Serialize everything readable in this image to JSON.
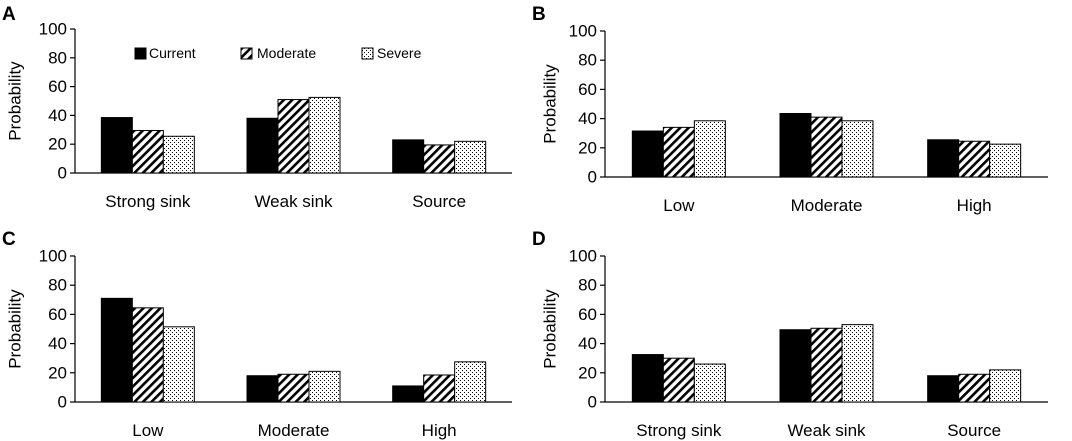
{
  "chart_data": [
    {
      "panel": "A",
      "type": "bar",
      "ylabel": "Probability",
      "ylim": [
        0,
        100
      ],
      "yticks": [
        0,
        20,
        40,
        60,
        80,
        100
      ],
      "categories": [
        "Strong sink",
        "Weak sink",
        "Source"
      ],
      "series": [
        {
          "name": "Current",
          "values": [
            38.5,
            38,
            23
          ]
        },
        {
          "name": "Moderate",
          "values": [
            29.5,
            51,
            19.5
          ]
        },
        {
          "name": "Severe",
          "values": [
            25.5,
            52.5,
            22
          ]
        }
      ],
      "legend": [
        "Current",
        "Moderate",
        "Severe"
      ]
    },
    {
      "panel": "B",
      "type": "bar",
      "ylabel": "Probability",
      "ylim": [
        0,
        100
      ],
      "yticks": [
        0,
        20,
        40,
        60,
        80,
        100
      ],
      "categories": [
        "Low",
        "Moderate",
        "High"
      ],
      "series": [
        {
          "name": "Current",
          "values": [
            31.5,
            43.5,
            25.5
          ]
        },
        {
          "name": "Moderate",
          "values": [
            34,
            41,
            24.5
          ]
        },
        {
          "name": "Severe",
          "values": [
            38.5,
            38.5,
            22.5
          ]
        }
      ]
    },
    {
      "panel": "C",
      "type": "bar",
      "ylabel": "Probability",
      "ylim": [
        0,
        100
      ],
      "yticks": [
        0,
        20,
        40,
        60,
        80,
        100
      ],
      "categories": [
        "Low",
        "Moderate",
        "High"
      ],
      "series": [
        {
          "name": "Current",
          "values": [
            71,
            18,
            11
          ]
        },
        {
          "name": "Moderate",
          "values": [
            64.5,
            19,
            18.5
          ]
        },
        {
          "name": "Severe",
          "values": [
            51.5,
            21,
            27.5
          ]
        }
      ]
    },
    {
      "panel": "D",
      "type": "bar",
      "ylabel": "Probability",
      "ylim": [
        0,
        100
      ],
      "yticks": [
        0,
        20,
        40,
        60,
        80,
        100
      ],
      "categories": [
        "Strong sink",
        "Weak sink",
        "Source"
      ],
      "series": [
        {
          "name": "Current",
          "values": [
            32.5,
            49.5,
            18
          ]
        },
        {
          "name": "Moderate",
          "values": [
            30,
            50.5,
            19
          ]
        },
        {
          "name": "Severe",
          "values": [
            26,
            53,
            22
          ]
        }
      ]
    }
  ]
}
